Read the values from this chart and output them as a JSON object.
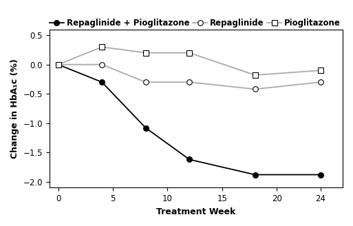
{
  "weeks": [
    0,
    4,
    8,
    12,
    18,
    24
  ],
  "combo": [
    0.0,
    -0.3,
    -1.08,
    -1.62,
    -1.88,
    -1.88
  ],
  "repaglinide": [
    0.0,
    0.0,
    -0.3,
    -0.3,
    -0.42,
    -0.3
  ],
  "pioglitazone": [
    0.0,
    0.3,
    0.2,
    0.2,
    -0.18,
    -0.1
  ],
  "combo_line_color": "#000000",
  "repaglinide_line_color": "#aaaaaa",
  "pioglitazone_line_color": "#aaaaaa",
  "xlabel": "Treatment Week",
  "ylabel": "Change in HbA₁c (%)",
  "ylim": [
    -2.1,
    0.6
  ],
  "xlim": [
    -0.8,
    26.0
  ],
  "yticks": [
    -2.0,
    -1.5,
    -1.0,
    -0.5,
    0.0,
    0.5
  ],
  "xticks": [
    0,
    5,
    10,
    15,
    20,
    24
  ],
  "legend_combo": "Repaglinide + Pioglitazone",
  "legend_repaglinide": "Repaglinide",
  "legend_pioglitazone": "Pioglitazone",
  "axis_fontsize": 9,
  "tick_fontsize": 8.5,
  "legend_fontsize": 8.5,
  "linewidth": 1.3,
  "markersize": 5.5
}
